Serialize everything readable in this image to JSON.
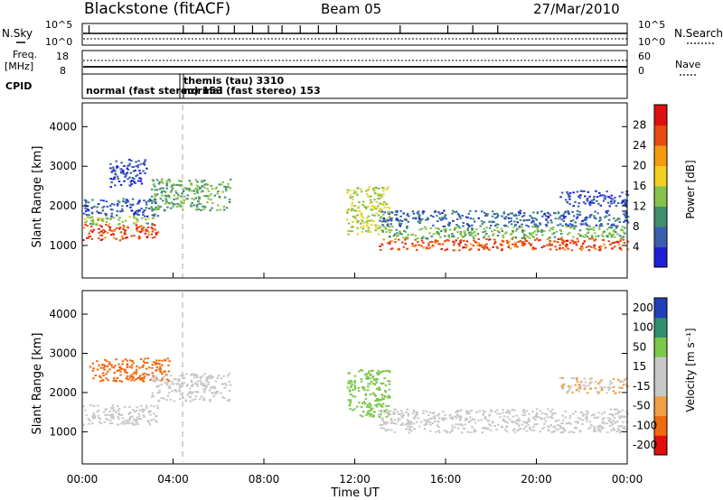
{
  "header": {
    "station": "Blackstone (fitACF)",
    "beam": "Beam 05",
    "date": "27/Mar/2010"
  },
  "panels": {
    "noise": {
      "left_label": "N.Sky",
      "left_ticks": [
        "10^5",
        "10^0"
      ],
      "right_ticks": [
        "10^5",
        "10^0"
      ],
      "right_label": "N.Search"
    },
    "freq": {
      "left_label_1": "Freq.",
      "left_label_2": "[MHz]",
      "left_ticks": [
        "18",
        "8"
      ],
      "right_ticks": [
        "60",
        "0"
      ],
      "right_label": "Nave"
    },
    "cpid": {
      "label": "CPID",
      "entries": [
        {
          "text": "normal (fast stereo) 153",
          "start_hour": 0.0
        },
        {
          "text": "themis (tau) 3310",
          "start_hour": 4.45
        },
        {
          "text": "normal (fast stereo) 153",
          "start_hour": 4.6
        }
      ]
    }
  },
  "chart_data": [
    {
      "type": "heatmap",
      "name": "power",
      "xlabel": "",
      "ylabel": "Slant Range [km]",
      "xlim": [
        0,
        24
      ],
      "ylim": [
        180,
        4600
      ],
      "yticks": [
        "1000",
        "2000",
        "3000",
        "4000"
      ],
      "ytick_values": [
        1000,
        2000,
        3000,
        4000
      ],
      "colorbar": {
        "label": "Power [dB]",
        "tick_labels": [
          "4",
          "8",
          "12",
          "16",
          "20",
          "24",
          "28"
        ],
        "tick_values": [
          4,
          8,
          12,
          16,
          20,
          24,
          28
        ],
        "range": [
          0,
          32
        ],
        "colors": [
          "#1f1fd8",
          "#3a5fb0",
          "#3f8f6f",
          "#86c24a",
          "#f0d020",
          "#f59a10",
          "#e84a10",
          "#e01010"
        ]
      },
      "scatter_bands": [
        {
          "hours": [
            0.0,
            3.3
          ],
          "range_km": [
            1150,
            1550
          ],
          "level": 26
        },
        {
          "hours": [
            0.0,
            3.3
          ],
          "range_km": [
            1550,
            1750
          ],
          "level": 14
        },
        {
          "hours": [
            0.0,
            3.3
          ],
          "range_km": [
            1750,
            2200
          ],
          "level": 6
        },
        {
          "hours": [
            3.0,
            6.5
          ],
          "range_km": [
            1900,
            2700
          ],
          "level": 12
        },
        {
          "hours": [
            1.2,
            2.8
          ],
          "range_km": [
            2500,
            3200
          ],
          "level": 5
        },
        {
          "hours": [
            11.6,
            13.5
          ],
          "range_km": [
            1300,
            2500
          ],
          "level": 16
        },
        {
          "hours": [
            13.0,
            24.0
          ],
          "range_km": [
            900,
            1200
          ],
          "level": 26
        },
        {
          "hours": [
            13.0,
            24.0
          ],
          "range_km": [
            1200,
            1500
          ],
          "level": 13
        },
        {
          "hours": [
            13.0,
            24.0
          ],
          "range_km": [
            1500,
            1900
          ],
          "level": 6
        },
        {
          "hours": [
            21.0,
            24.0
          ],
          "range_km": [
            2000,
            2400
          ],
          "level": 5
        }
      ]
    },
    {
      "type": "heatmap",
      "name": "velocity",
      "xlabel": "Time UT",
      "ylabel": "Slant Range [km]",
      "xlim": [
        0,
        24
      ],
      "ylim": [
        180,
        4600
      ],
      "xticks": [
        "00:00",
        "04:00",
        "08:00",
        "12:00",
        "16:00",
        "20:00",
        "00:00"
      ],
      "xtick_values": [
        0,
        4,
        8,
        12,
        16,
        20,
        24
      ],
      "yticks": [
        "1000",
        "2000",
        "3000",
        "4000"
      ],
      "ytick_values": [
        1000,
        2000,
        3000,
        4000
      ],
      "colorbar": {
        "label": "Velocity [m s⁻¹]",
        "tick_labels": [
          "-200",
          "-100",
          "-50",
          "-15",
          "15",
          "50",
          "100",
          "200"
        ],
        "bands": [
          "#e01010",
          "#f06a10",
          "#f0a040",
          "#c8c8c8",
          "#c8c8c8",
          "#7cc84a",
          "#2f8f6f",
          "#1f3fb8"
        ]
      },
      "scatter_bands": [
        {
          "hours": [
            0.0,
            3.3
          ],
          "range_km": [
            1200,
            1700
          ],
          "vel": 0
        },
        {
          "hours": [
            0.3,
            3.8
          ],
          "range_km": [
            2300,
            2900
          ],
          "vel": -120
        },
        {
          "hours": [
            3.0,
            6.5
          ],
          "range_km": [
            1800,
            2500
          ],
          "vel": 0
        },
        {
          "hours": [
            11.6,
            13.5
          ],
          "range_km": [
            1400,
            2600
          ],
          "vel": 60
        },
        {
          "hours": [
            13.0,
            24.0
          ],
          "range_km": [
            1000,
            1600
          ],
          "vel": 0
        },
        {
          "hours": [
            21.0,
            24.0
          ],
          "range_km": [
            2000,
            2400
          ],
          "vel": -30
        }
      ]
    }
  ],
  "nsky_spike_hours": [
    0.3,
    4.45,
    5.3,
    6.0,
    6.7,
    7.5,
    8.2,
    8.8,
    9.6,
    10.4,
    11.2,
    14.0,
    16.1,
    17.2,
    18.3
  ]
}
